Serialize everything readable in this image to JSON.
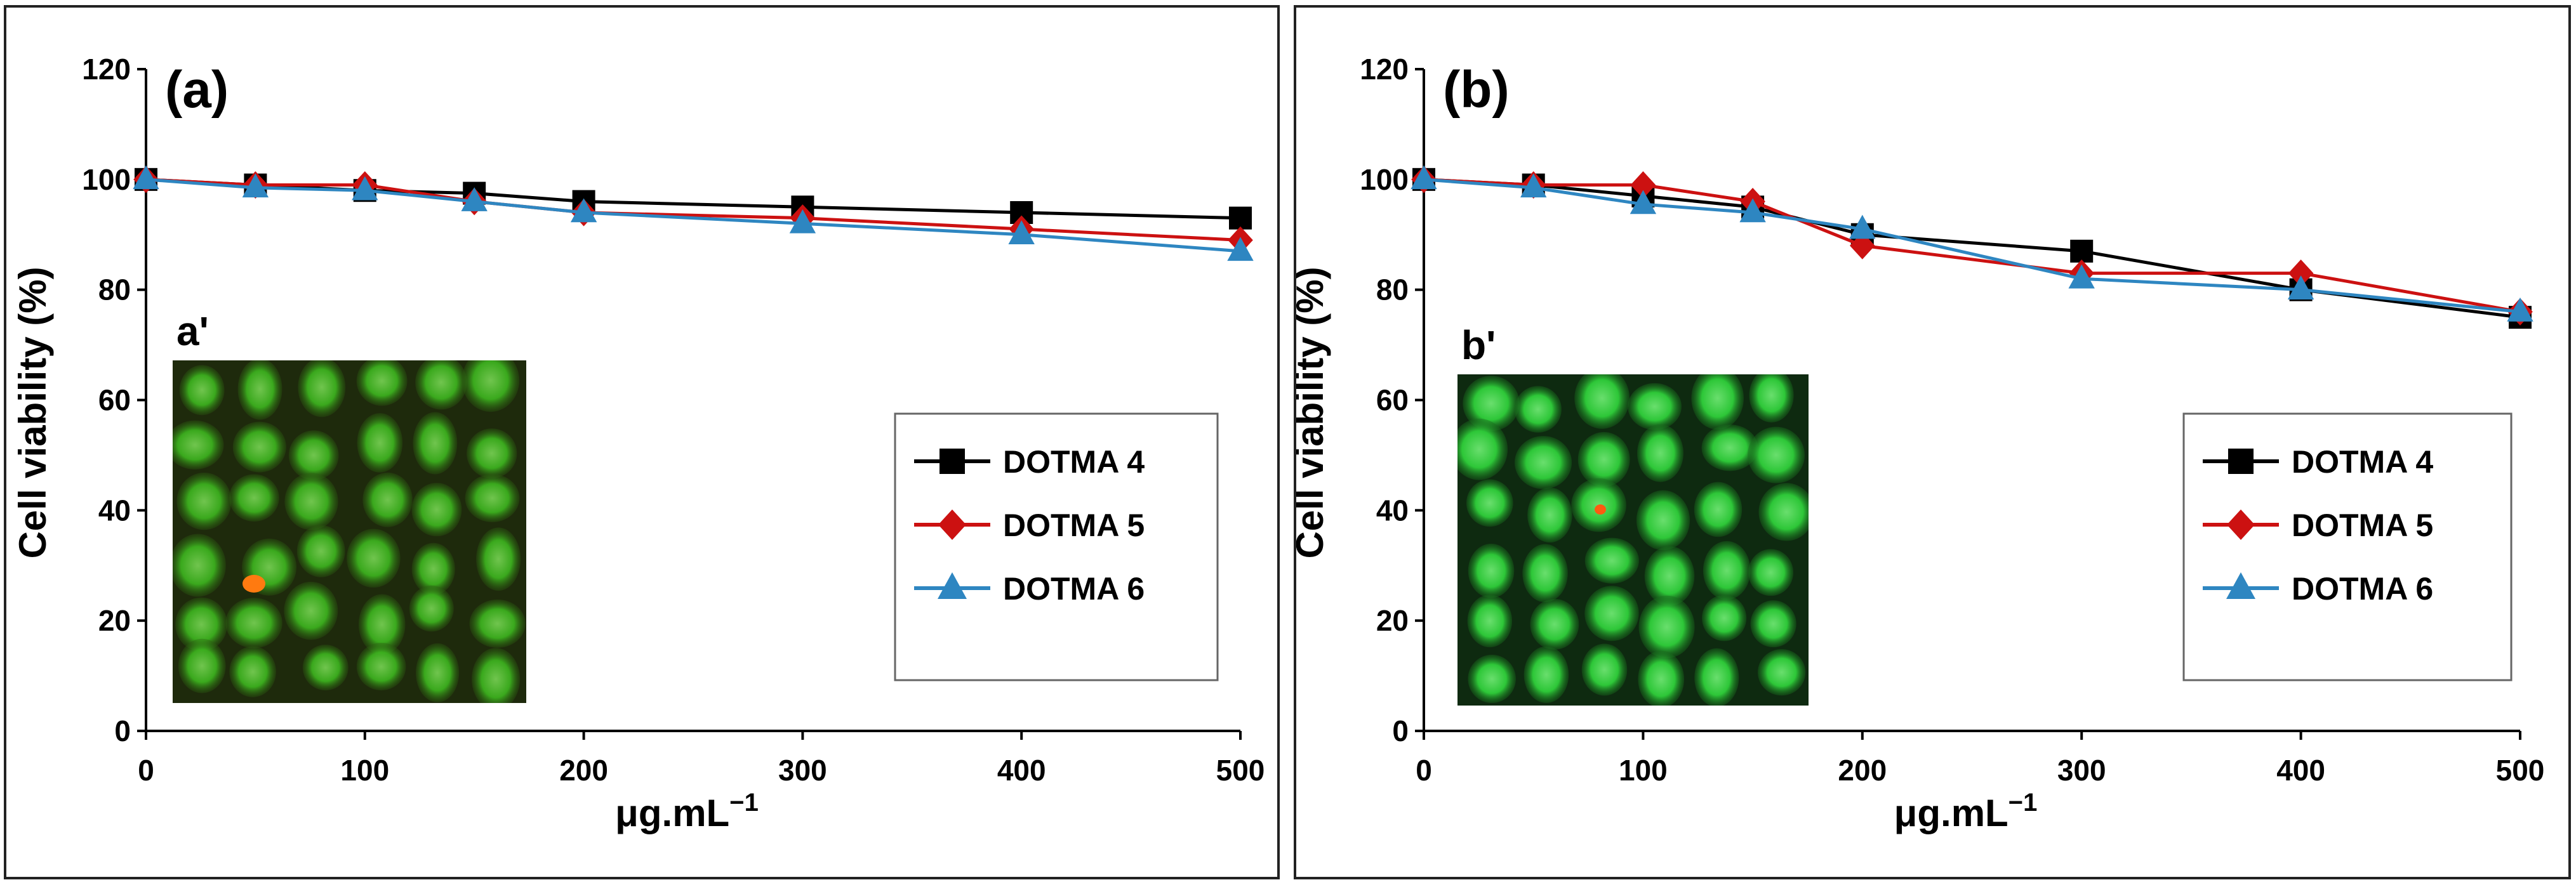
{
  "chart_data": [
    {
      "type": "line",
      "panel_label": "(a)",
      "inset_label": "a'",
      "xlabel": "μg.mL",
      "xlabel_sup": "−1",
      "ylabel": "Cell viability (%)",
      "ylim": [
        0,
        120
      ],
      "xlim": [
        0,
        500
      ],
      "yticks": [
        0,
        20,
        40,
        60,
        80,
        100,
        120
      ],
      "xticks": [
        0,
        100,
        200,
        300,
        400,
        500
      ],
      "x": [
        0,
        50,
        100,
        150,
        200,
        300,
        400,
        500
      ],
      "legend_position": "center-right",
      "series": [
        {
          "name": "DOTMA 4",
          "color": "#000000",
          "marker": "square",
          "values": [
            100,
            99,
            98,
            97.5,
            96,
            95,
            94,
            93
          ]
        },
        {
          "name": "DOTMA 5",
          "color": "#cc1111",
          "marker": "diamond",
          "values": [
            100,
            99,
            99,
            96,
            94,
            93,
            91,
            89
          ]
        },
        {
          "name": "DOTMA 6",
          "color": "#2e86c1",
          "marker": "triangle",
          "values": [
            100,
            98.5,
            98,
            96,
            94,
            92,
            90,
            87
          ]
        }
      ]
    },
    {
      "type": "line",
      "panel_label": "(b)",
      "inset_label": "b'",
      "xlabel": "μg.mL",
      "xlabel_sup": "−1",
      "ylabel": "Cell viability (%)",
      "ylim": [
        0,
        120
      ],
      "xlim": [
        0,
        500
      ],
      "yticks": [
        0,
        20,
        40,
        60,
        80,
        100,
        120
      ],
      "xticks": [
        0,
        100,
        200,
        300,
        400,
        500
      ],
      "x": [
        0,
        50,
        100,
        150,
        200,
        300,
        400,
        500
      ],
      "legend_position": "center-right",
      "series": [
        {
          "name": "DOTMA 4",
          "color": "#000000",
          "marker": "square",
          "values": [
            100,
            99,
            97,
            95,
            90,
            87,
            80,
            75
          ]
        },
        {
          "name": "DOTMA 5",
          "color": "#cc1111",
          "marker": "diamond",
          "values": [
            100,
            99,
            99,
            96,
            88,
            83,
            83,
            76
          ]
        },
        {
          "name": "DOTMA 6",
          "color": "#2e86c1",
          "marker": "triangle",
          "values": [
            100,
            98.5,
            95.5,
            94,
            91,
            82,
            80,
            76
          ]
        }
      ]
    }
  ]
}
